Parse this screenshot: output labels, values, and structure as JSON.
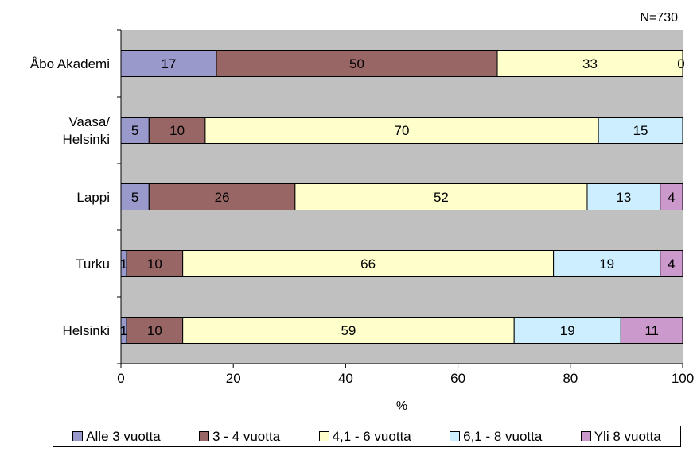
{
  "chart_data": {
    "type": "bar",
    "orientation": "horizontal",
    "stacked": true,
    "note": "N=730",
    "categories": [
      "Åbo Akademi",
      "Vaasa/\nHelsinki",
      "Lappi",
      "Turku",
      "Helsinki"
    ],
    "series": [
      {
        "name": "Alle 3 vuotta",
        "color": "#9999cc",
        "values": [
          17,
          5,
          5,
          1,
          1
        ]
      },
      {
        "name": "3 - 4 vuotta",
        "color": "#996666",
        "values": [
          50,
          10,
          26,
          10,
          10
        ]
      },
      {
        "name": "4,1 - 6 vuotta",
        "color": "#ffffcc",
        "values": [
          33,
          70,
          52,
          66,
          59
        ]
      },
      {
        "name": "6,1 - 8 vuotta",
        "color": "#cceeff",
        "values": [
          0,
          15,
          13,
          19,
          19
        ]
      },
      {
        "name": "Yli 8 vuotta",
        "color": "#cc99cc",
        "values": [
          0,
          0,
          4,
          4,
          11
        ]
      }
    ],
    "xlabel": "%",
    "xlim": [
      0,
      100
    ],
    "xticks": [
      0,
      20,
      40,
      60,
      80,
      100
    ],
    "plot_background": "#c0c0c0",
    "grid": false,
    "legend_position": "bottom"
  }
}
